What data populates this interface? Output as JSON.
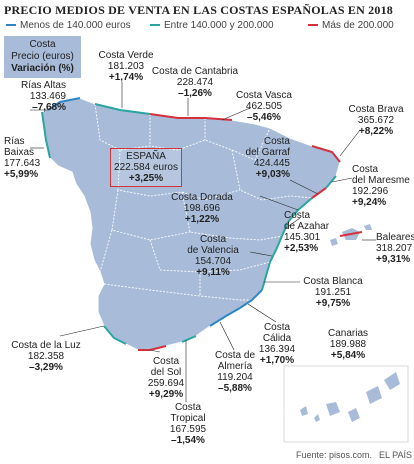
{
  "title": "PRECIO MEDIOS DE VENTA EN LAS COSTAS ESPAÑOLAS EN 2018",
  "legend": [
    {
      "label": "Menos de 140.000 euros",
      "color": "#2f86c6"
    },
    {
      "label": "Entre 140.000 y 200.000",
      "color": "#2aa5a0"
    },
    {
      "label": "Más de 200.000",
      "color": "#d4313a"
    }
  ],
  "key": {
    "line1": "Costa",
    "line2": "Precio (euros)",
    "line3": "Variación (%)"
  },
  "spain": {
    "name": "ESPAÑA",
    "price": "222.584 euros",
    "change": "+3,25%"
  },
  "coasts": {
    "rias_altas": {
      "name": "Rías Altas",
      "price": "133.469",
      "change": "–7,68%"
    },
    "rias_baixas": {
      "name1": "Rías",
      "name2": "Baixas",
      "price": "177.643",
      "change": "+5,99%"
    },
    "costa_verde": {
      "name": "Costa Verde",
      "price": "181.203",
      "change": "+1,74%"
    },
    "cantabria": {
      "name": "Costa de Cantabria",
      "price": "228.474",
      "change": "–1,26%"
    },
    "vasca": {
      "name": "Costa Vasca",
      "price": "462.505",
      "change": "–5,46%"
    },
    "brava": {
      "name": "Costa Brava",
      "price": "365.672",
      "change": "+8,22%"
    },
    "garraf": {
      "name1": "Costa",
      "name2": "del Garraf",
      "price": "424.445",
      "change": "+9,03%"
    },
    "maresme": {
      "name1": "Costa",
      "name2": "del Maresme",
      "price": "192.296",
      "change": "+9,24%"
    },
    "dorada": {
      "name": "Costa Dorada",
      "price": "198.696",
      "change": "+1,22%"
    },
    "azahar": {
      "name1": "Costa",
      "name2": "de Azahar",
      "price": "145.301",
      "change": "+2,53%"
    },
    "baleares": {
      "name": "Baleares",
      "price": "318.207",
      "change": "+9,31%"
    },
    "valencia": {
      "name1": "Costa",
      "name2": "de Valencia",
      "price": "154.704",
      "change": "+9,11%"
    },
    "blanca": {
      "name": "Costa Blanca",
      "price": "191.251",
      "change": "+9,75%"
    },
    "calida": {
      "name1": "Costa",
      "name2": "Cálida",
      "price": "136.394",
      "change": "+1,70%"
    },
    "canarias": {
      "name": "Canarias",
      "price": "189.988",
      "change": "+5,84%"
    },
    "almeria": {
      "name1": "Costa de",
      "name2": "Almería",
      "price": "119.204",
      "change": "–5,88%"
    },
    "sol": {
      "name1": "Costa",
      "name2": "del Sol",
      "price": "259.694",
      "change": "+9,29%"
    },
    "tropical": {
      "name1": "Costa",
      "name2": "Tropical",
      "price": "167.595",
      "change": "–1,54%"
    },
    "luz": {
      "name": "Costa de la Luz",
      "price": "182.358",
      "change": "–3,29%"
    }
  },
  "source": "Fuente: pisos.com.",
  "publisher": "EL PAÍS"
}
